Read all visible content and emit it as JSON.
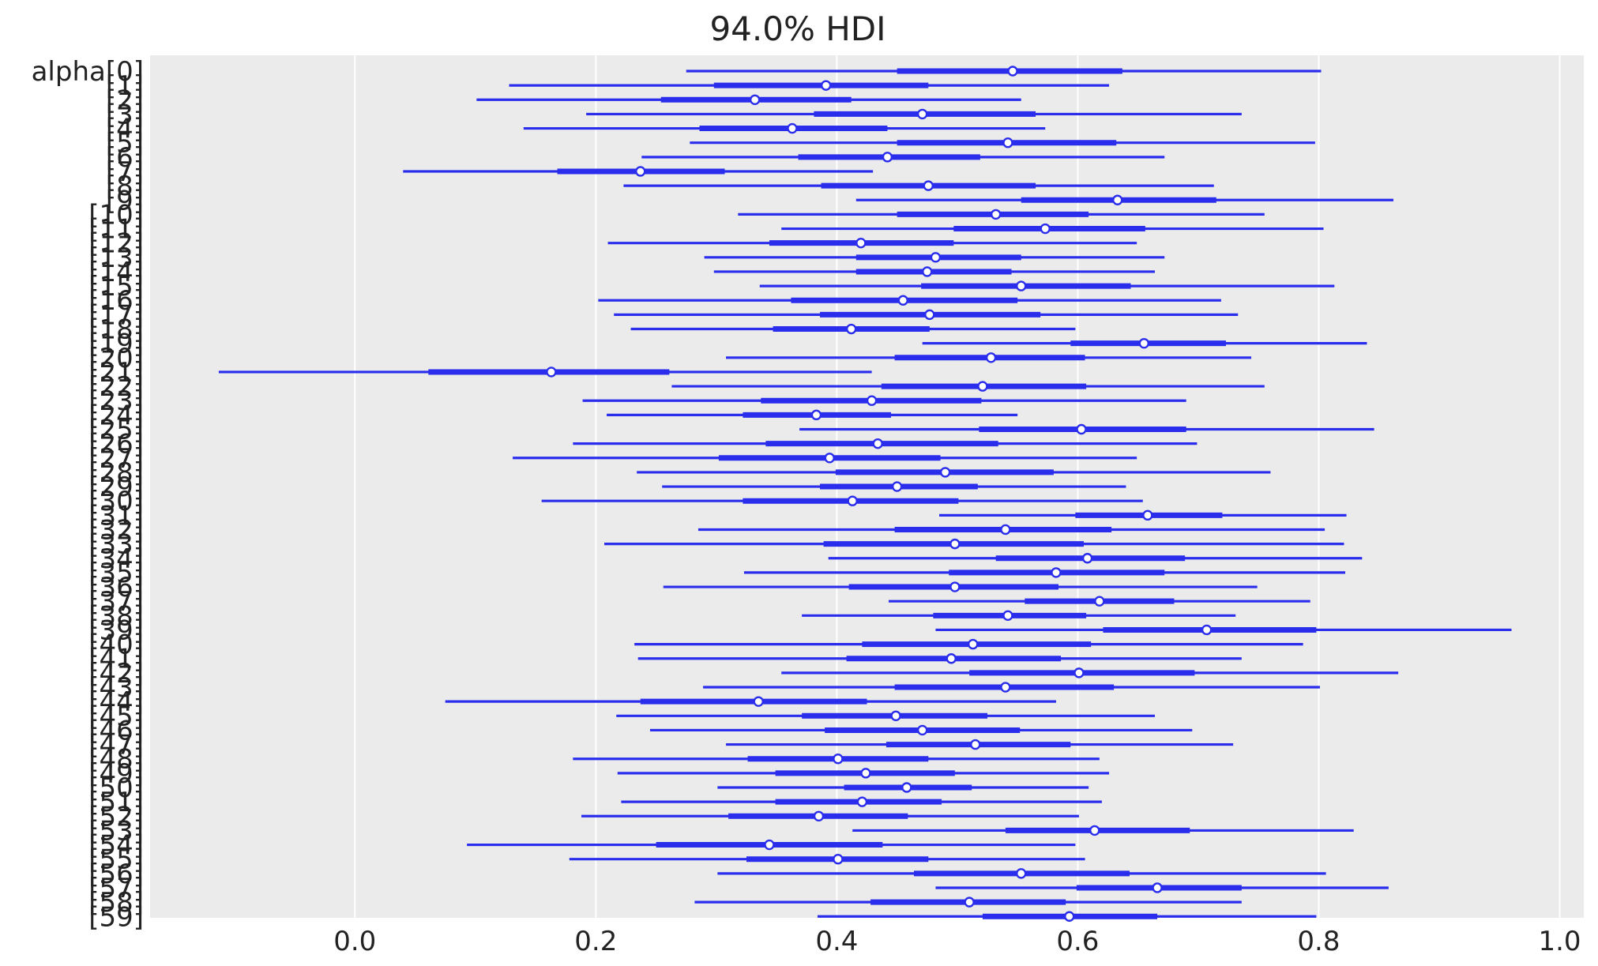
{
  "chart_data": {
    "type": "forest",
    "title": "94.0% HDI",
    "xlabel": "",
    "ylabel": "",
    "xlim": [
      -0.17,
      1.02
    ],
    "xticks": [
      0.0,
      0.2,
      0.4,
      0.6,
      0.8,
      1.0
    ],
    "xtick_labels": [
      "0.0",
      "0.2",
      "0.4",
      "0.6",
      "0.8",
      "1.0"
    ],
    "grid": "vertical",
    "background_color": "#ebebeb",
    "series_color": "#2a2eec",
    "variable": "alpha",
    "labels": [
      "alpha[0]",
      "[1]",
      "[2]",
      "[3]",
      "[4]",
      "[5]",
      "[6]",
      "[7]",
      "[8]",
      "[9]",
      "[10]",
      "[11]",
      "[12]",
      "[13]",
      "[14]",
      "[15]",
      "[16]",
      "[17]",
      "[18]",
      "[19]",
      "[20]",
      "[21]",
      "[22]",
      "[23]",
      "[24]",
      "[25]",
      "[26]",
      "[27]",
      "[28]",
      "[29]",
      "[30]",
      "[31]",
      "[32]",
      "[33]",
      "[34]",
      "[35]",
      "[36]",
      "[37]",
      "[38]",
      "[39]",
      "[40]",
      "[41]",
      "[42]",
      "[43]",
      "[44]",
      "[45]",
      "[46]",
      "[47]",
      "[48]",
      "[49]",
      "[50]",
      "[51]",
      "[52]",
      "[53]",
      "[54]",
      "[55]",
      "[56]",
      "[57]",
      "[58]",
      "[59]"
    ],
    "hdi94": [
      [
        0.275,
        0.802
      ],
      [
        0.128,
        0.626
      ],
      [
        0.101,
        0.553
      ],
      [
        0.192,
        0.736
      ],
      [
        0.14,
        0.573
      ],
      [
        0.278,
        0.797
      ],
      [
        0.238,
        0.672
      ],
      [
        0.04,
        0.43
      ],
      [
        0.223,
        0.713
      ],
      [
        0.416,
        0.862
      ],
      [
        0.318,
        0.755
      ],
      [
        0.354,
        0.804
      ],
      [
        0.21,
        0.649
      ],
      [
        0.29,
        0.672
      ],
      [
        0.298,
        0.664
      ],
      [
        0.336,
        0.813
      ],
      [
        0.202,
        0.719
      ],
      [
        0.215,
        0.733
      ],
      [
        0.229,
        0.598
      ],
      [
        0.471,
        0.84
      ],
      [
        0.308,
        0.744
      ],
      [
        -0.113,
        0.429
      ],
      [
        0.263,
        0.755
      ],
      [
        0.189,
        0.69
      ],
      [
        0.209,
        0.55
      ],
      [
        0.369,
        0.846
      ],
      [
        0.181,
        0.699
      ],
      [
        0.131,
        0.649
      ],
      [
        0.234,
        0.76
      ],
      [
        0.255,
        0.64
      ],
      [
        0.155,
        0.654
      ],
      [
        0.485,
        0.823
      ],
      [
        0.285,
        0.805
      ],
      [
        0.207,
        0.821
      ],
      [
        0.393,
        0.836
      ],
      [
        0.323,
        0.822
      ],
      [
        0.256,
        0.749
      ],
      [
        0.443,
        0.793
      ],
      [
        0.371,
        0.731
      ],
      [
        0.482,
        0.96
      ],
      [
        0.232,
        0.787
      ],
      [
        0.235,
        0.736
      ],
      [
        0.354,
        0.866
      ],
      [
        0.289,
        0.801
      ],
      [
        0.075,
        0.582
      ],
      [
        0.217,
        0.664
      ],
      [
        0.245,
        0.695
      ],
      [
        0.308,
        0.729
      ],
      [
        0.181,
        0.618
      ],
      [
        0.218,
        0.626
      ],
      [
        0.301,
        0.609
      ],
      [
        0.221,
        0.62
      ],
      [
        0.188,
        0.601
      ],
      [
        0.413,
        0.829
      ],
      [
        0.093,
        0.598
      ],
      [
        0.178,
        0.606
      ],
      [
        0.301,
        0.806
      ],
      [
        0.482,
        0.858
      ],
      [
        0.282,
        0.736
      ],
      [
        0.384,
        0.798
      ]
    ],
    "iqr": [
      [
        0.45,
        0.637
      ],
      [
        0.298,
        0.476
      ],
      [
        0.254,
        0.412
      ],
      [
        0.381,
        0.565
      ],
      [
        0.286,
        0.442
      ],
      [
        0.45,
        0.632
      ],
      [
        0.368,
        0.519
      ],
      [
        0.168,
        0.307
      ],
      [
        0.387,
        0.565
      ],
      [
        0.553,
        0.715
      ],
      [
        0.45,
        0.609
      ],
      [
        0.497,
        0.656
      ],
      [
        0.344,
        0.497
      ],
      [
        0.416,
        0.553
      ],
      [
        0.416,
        0.545
      ],
      [
        0.47,
        0.644
      ],
      [
        0.362,
        0.55
      ],
      [
        0.386,
        0.569
      ],
      [
        0.347,
        0.477
      ],
      [
        0.594,
        0.723
      ],
      [
        0.448,
        0.606
      ],
      [
        0.061,
        0.261
      ],
      [
        0.437,
        0.607
      ],
      [
        0.337,
        0.52
      ],
      [
        0.322,
        0.445
      ],
      [
        0.518,
        0.69
      ],
      [
        0.341,
        0.534
      ],
      [
        0.302,
        0.486
      ],
      [
        0.399,
        0.58
      ],
      [
        0.386,
        0.517
      ],
      [
        0.322,
        0.501
      ],
      [
        0.598,
        0.72
      ],
      [
        0.448,
        0.628
      ],
      [
        0.389,
        0.605
      ],
      [
        0.532,
        0.689
      ],
      [
        0.493,
        0.672
      ],
      [
        0.41,
        0.584
      ],
      [
        0.556,
        0.68
      ],
      [
        0.48,
        0.607
      ],
      [
        0.621,
        0.798
      ],
      [
        0.421,
        0.611
      ],
      [
        0.408,
        0.586
      ],
      [
        0.51,
        0.697
      ],
      [
        0.448,
        0.63
      ],
      [
        0.237,
        0.425
      ],
      [
        0.371,
        0.525
      ],
      [
        0.39,
        0.552
      ],
      [
        0.441,
        0.594
      ],
      [
        0.326,
        0.476
      ],
      [
        0.349,
        0.498
      ],
      [
        0.406,
        0.512
      ],
      [
        0.349,
        0.487
      ],
      [
        0.31,
        0.459
      ],
      [
        0.54,
        0.693
      ],
      [
        0.25,
        0.438
      ],
      [
        0.325,
        0.476
      ],
      [
        0.464,
        0.643
      ],
      [
        0.599,
        0.736
      ],
      [
        0.428,
        0.59
      ],
      [
        0.521,
        0.666
      ]
    ],
    "median": [
      0.546,
      0.391,
      0.332,
      0.471,
      0.363,
      0.542,
      0.442,
      0.237,
      0.476,
      0.633,
      0.532,
      0.573,
      0.42,
      0.482,
      0.475,
      0.553,
      0.455,
      0.477,
      0.412,
      0.655,
      0.528,
      0.163,
      0.521,
      0.429,
      0.383,
      0.603,
      0.434,
      0.394,
      0.49,
      0.45,
      0.413,
      0.658,
      0.54,
      0.498,
      0.608,
      0.582,
      0.498,
      0.618,
      0.542,
      0.707,
      0.513,
      0.495,
      0.601,
      0.54,
      0.335,
      0.449,
      0.471,
      0.515,
      0.401,
      0.424,
      0.458,
      0.421,
      0.385,
      0.614,
      0.344,
      0.401,
      0.553,
      0.666,
      0.51,
      0.593
    ]
  }
}
